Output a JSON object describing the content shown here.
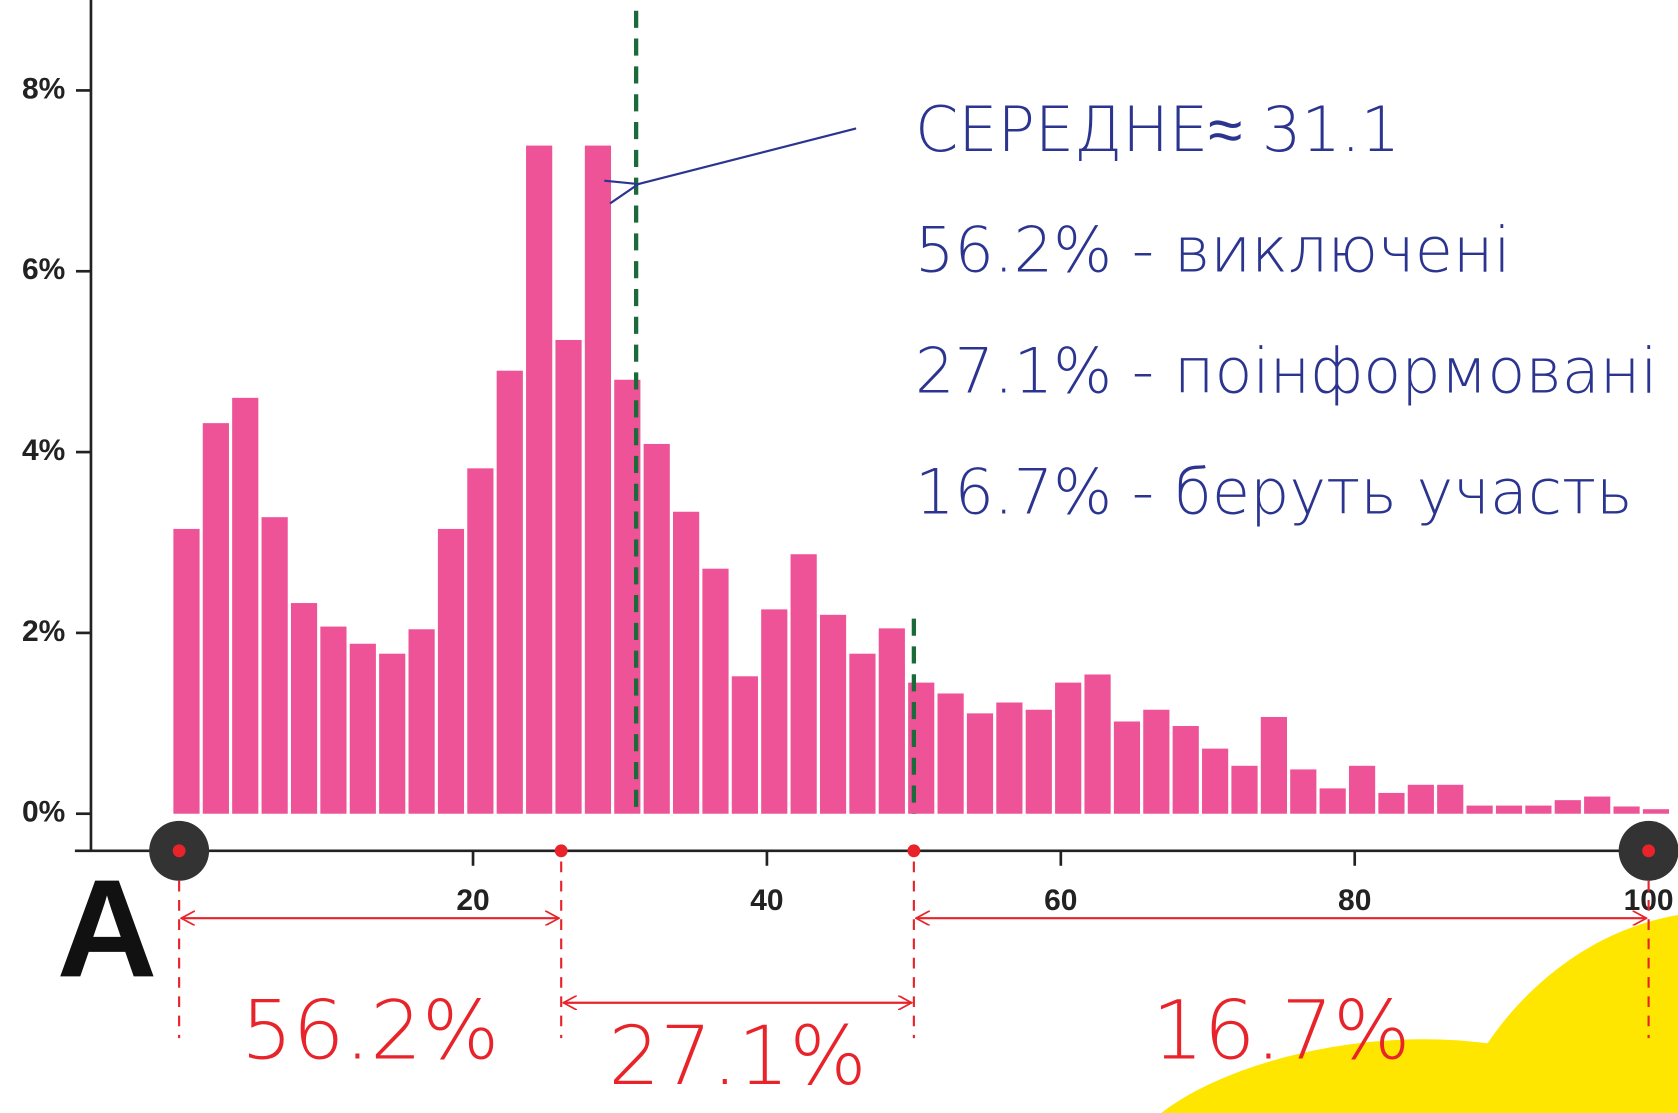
{
  "chart_data": {
    "type": "histogram",
    "bins": [
      -0.5,
      1.5,
      3.5,
      5.5,
      7.5,
      9.5,
      11.5,
      13.5,
      15.5,
      17.5,
      19.5,
      21.5,
      23.5,
      25.5,
      27.5,
      29.5,
      31.5,
      33.5,
      35.5,
      37.5,
      39.5,
      41.5,
      43.5,
      45.5,
      47.5,
      49.5,
      51.5,
      53.5,
      55.5,
      57.5,
      59.5,
      61.5,
      63.5,
      65.5,
      67.5,
      69.5,
      71.5,
      73.5,
      75.5,
      77.5,
      79.5,
      81.5,
      83.5,
      85.5,
      87.5,
      89.5,
      91.5,
      93.5,
      95.5,
      97.5,
      99.5,
      101.5
    ],
    "values": [
      3.15,
      4.32,
      4.6,
      3.28,
      2.33,
      2.07,
      1.88,
      1.77,
      2.04,
      3.15,
      3.82,
      4.9,
      7.39,
      5.24,
      7.39,
      4.8,
      4.09,
      3.34,
      2.71,
      1.52,
      2.26,
      2.87,
      2.2,
      1.77,
      2.05,
      1.45,
      1.33,
      1.11,
      1.23,
      1.15,
      1.45,
      1.54,
      1.02,
      1.15,
      0.97,
      0.72,
      0.53,
      1.07,
      0.49,
      0.28,
      0.53,
      0.23,
      0.32,
      0.32,
      0.09,
      0.09,
      0.09,
      0.15,
      0.19,
      0.08,
      0.05
    ],
    "color": "#ee5297",
    "xlim": [
      -6,
      102
    ],
    "xticks": [
      20,
      40,
      60,
      80,
      100
    ],
    "ylim": [
      -0.41,
      9
    ],
    "yticks": [
      {
        "value": 0,
        "label": "0%"
      },
      {
        "value": 2,
        "label": "2%"
      },
      {
        "value": 4,
        "label": "4%"
      },
      {
        "value": 6,
        "label": "6%"
      },
      {
        "value": 8,
        "label": "8%"
      }
    ],
    "mean": 31.1,
    "threshold": 50,
    "annotations": [
      "СЕРЕДНЕ≈ 31.1",
      "56.2% - виключені",
      "27.1% - поінформовані",
      "16.7% - беруть участь"
    ],
    "segments": [
      {
        "from": 0,
        "to": 26,
        "label": "56.2%"
      },
      {
        "from": 26,
        "to": 50,
        "label": "27.1%"
      },
      {
        "from": 50,
        "to": 100,
        "label": "16.7%"
      }
    ],
    "panel_label": "A"
  }
}
